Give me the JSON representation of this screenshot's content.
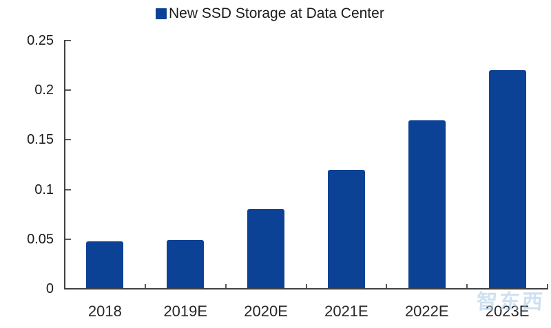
{
  "legend": {
    "label": "New SSD Storage at Data Center"
  },
  "watermark": {
    "text": "智东西"
  },
  "colors": {
    "bar": "#0C4296",
    "axis": "#404040",
    "tick": "#595959",
    "label_text": "#1A1A1A",
    "watermark": "#A9C9E4"
  },
  "chart_data": {
    "type": "bar",
    "title": "New SSD Storage at Data Center",
    "categories": [
      "2018",
      "2019E",
      "2020E",
      "2021E",
      "2022E",
      "2023E"
    ],
    "values": [
      0.048,
      0.049,
      0.08,
      0.12,
      0.17,
      0.22
    ],
    "series": [
      {
        "name": "New SSD Storage at Data Center",
        "values": [
          0.048,
          0.049,
          0.08,
          0.12,
          0.17,
          0.22
        ]
      }
    ],
    "xlabel": "",
    "ylabel": "",
    "ylim": [
      0,
      0.25
    ],
    "yticks": [
      0,
      0.05,
      0.1,
      0.15,
      0.2,
      0.25
    ],
    "ytick_labels": [
      "0",
      "0.05",
      "0.1",
      "0.15",
      "0.2",
      "0.25"
    ],
    "grid": false,
    "legend_position": "top-center",
    "bar_color": "#0C4296"
  }
}
